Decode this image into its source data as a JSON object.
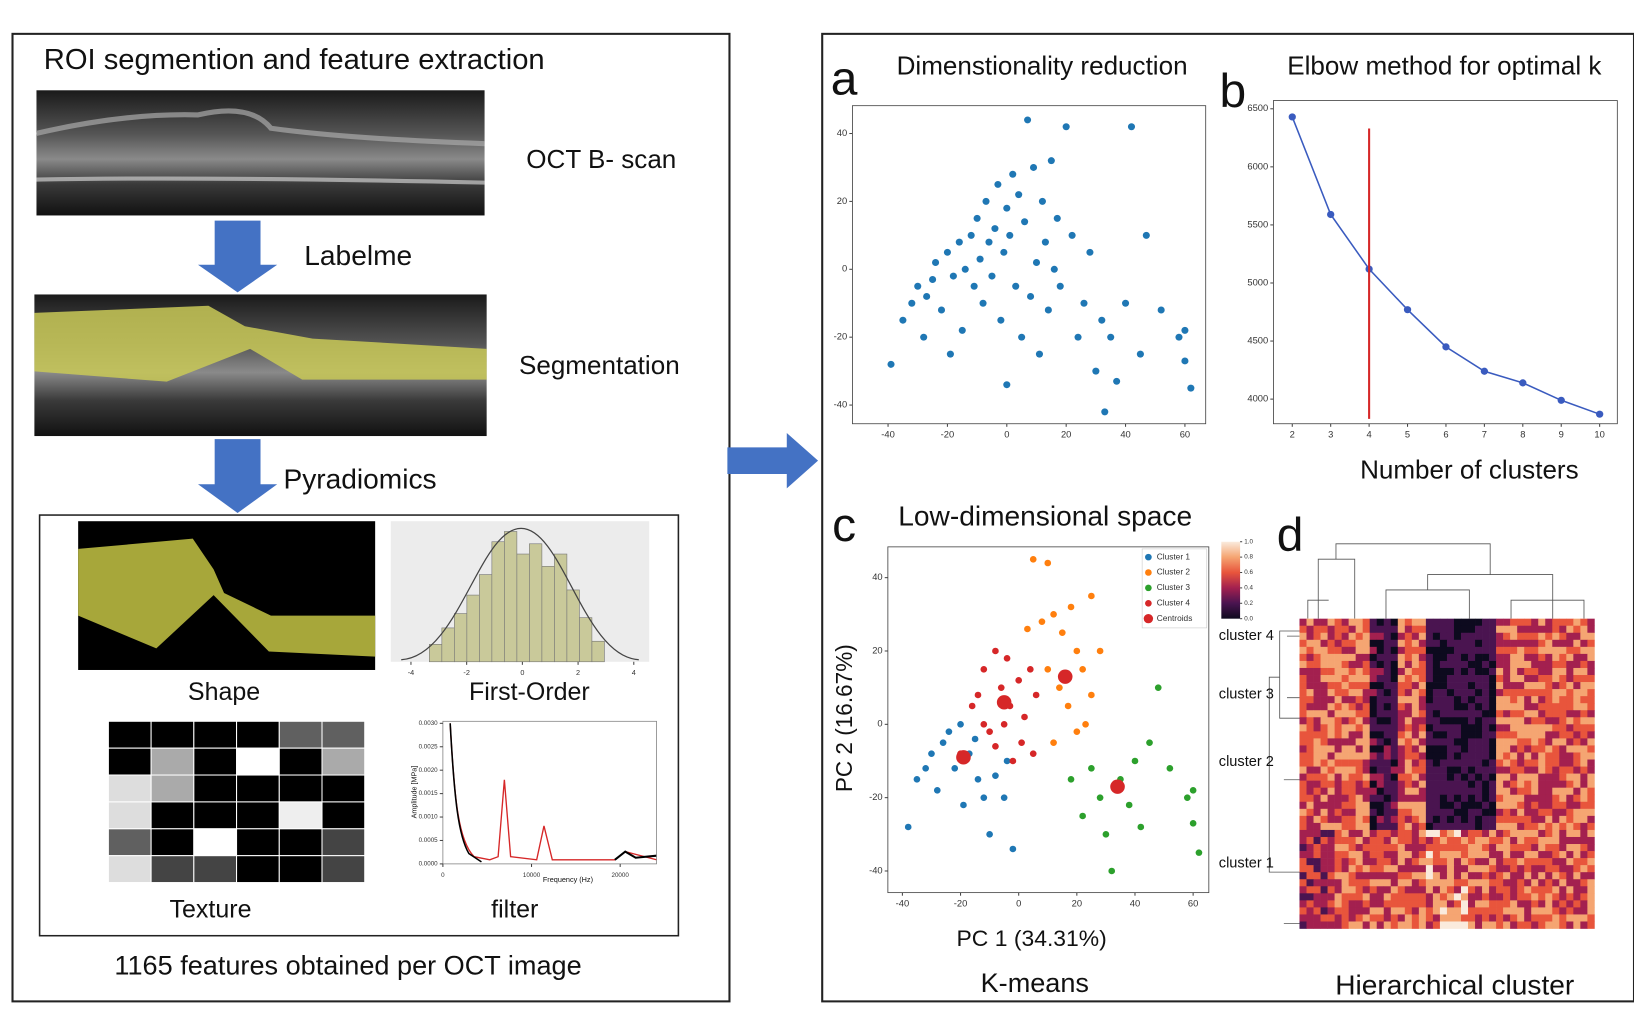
{
  "left_panel": {
    "title": "ROI segmention and feature extraction",
    "oct_label": "OCT B- scan",
    "step_1": "Labelme",
    "segmentation_label": "Segmentation",
    "step_2": "Pyradiomics",
    "shape": "Shape",
    "first_order": {
      "label": "First-Order",
      "xlim": [
        -4.35,
        4.18
      ],
      "xticks": [
        -4,
        -2,
        0,
        2,
        4
      ]
    },
    "texture": "Texture",
    "filter": {
      "label": "filter",
      "x_label": "Frequency (Hz)",
      "y_label": "Amplitude [MPa]",
      "xlim": [
        0,
        24100
      ],
      "xticks": [
        0,
        10000,
        20000
      ],
      "ylim": [
        0,
        0.003
      ],
      "yticks": [
        {
          "value": 0,
          "label": "0.0000"
        },
        {
          "value": 0.0005,
          "label": "0.0005"
        },
        {
          "value": 0.001,
          "label": "0.0010"
        },
        {
          "value": 0.0015,
          "label": "0.0015"
        },
        {
          "value": 0.002,
          "label": "0.0020"
        },
        {
          "value": 0.0025,
          "label": "0.0025"
        },
        {
          "value": 0.003,
          "label": "0.0030"
        }
      ]
    },
    "summary": "1165 features obtained per OCT image"
  },
  "chart_data": [
    {
      "type": "scatter",
      "letter": "a",
      "title": "Dimenstionality reduction",
      "color": "#1f77b4",
      "x": [
        -39,
        -35,
        -32,
        -30,
        -28,
        -27,
        -25,
        -24,
        -22,
        -20,
        -19,
        -18,
        -16,
        -15,
        -14,
        -12,
        -11,
        -10,
        -9,
        -8,
        -7,
        -6,
        -5,
        -4,
        -3,
        -2,
        -1,
        0,
        0,
        1,
        2,
        3,
        4,
        5,
        6,
        7,
        8,
        9,
        10,
        11,
        12,
        13,
        14,
        15,
        16,
        17,
        18,
        20,
        22,
        24,
        26,
        28,
        30,
        32,
        33,
        35,
        37,
        40,
        42,
        45,
        47,
        52,
        58,
        60,
        62,
        60
      ],
      "y": [
        -28,
        -15,
        -10,
        -5,
        -20,
        -8,
        -3,
        2,
        -12,
        5,
        -25,
        -2,
        8,
        -18,
        0,
        10,
        -5,
        15,
        3,
        -10,
        20,
        8,
        -2,
        12,
        25,
        -15,
        5,
        18,
        -34,
        10,
        28,
        -5,
        22,
        -20,
        14,
        44,
        -8,
        30,
        2,
        -25,
        20,
        8,
        -12,
        32,
        0,
        15,
        -5,
        42,
        10,
        -20,
        -10,
        5,
        -30,
        -15,
        -42,
        -20,
        -33,
        -10,
        42,
        -25,
        10,
        -12,
        -20,
        -27,
        -35,
        -18
      ],
      "xlim": [
        -52,
        67
      ],
      "ylim": [
        -45.5,
        48.2
      ],
      "xticks": [
        -40,
        -20,
        0,
        20,
        40,
        60
      ],
      "yticks": [
        -40,
        -20,
        0,
        20,
        40
      ]
    },
    {
      "type": "line",
      "letter": "b",
      "title": "Elbow method for optimal k",
      "x_label": "Number of clusters",
      "color": "#3a5bbf",
      "x": [
        2,
        3,
        4,
        5,
        6,
        7,
        8,
        9,
        10
      ],
      "values": [
        6430,
        5590,
        5120,
        4770,
        4450,
        4240,
        4140,
        3990,
        3870
      ],
      "vline": {
        "x": 4,
        "y": [
          3830,
          6330
        ],
        "color": "#d62728"
      },
      "xlim": [
        1.51,
        10.46
      ],
      "ylim": [
        3788,
        6571
      ],
      "xticks": [
        2,
        3,
        4,
        5,
        6,
        7,
        8,
        9,
        10
      ],
      "yticks": [
        4000,
        4500,
        5000,
        5500,
        6000,
        6500
      ]
    },
    {
      "type": "scatter",
      "letter": "c",
      "title": "Low-dimensional space",
      "x_label": "PC 1 (34.31%)",
      "y_label": "PC 2 (16.67%)",
      "caption": "K-means",
      "legend": "upper right",
      "series": [
        {
          "name": "Cluster 1",
          "color": "#1f77b4",
          "marker_size": 3.2,
          "x": [
            -38,
            -35,
            -32,
            -30,
            -28,
            -26,
            -24,
            -22,
            -20,
            -19,
            -17,
            -15,
            -14,
            -12,
            -10,
            -8,
            -5,
            -2,
            -4
          ],
          "y": [
            -28,
            -15,
            -12,
            -8,
            -18,
            -5,
            -2,
            -12,
            0,
            -22,
            -8,
            -4,
            -15,
            -20,
            -30,
            -14,
            -20,
            -34,
            -10
          ]
        },
        {
          "name": "Cluster 2",
          "color": "#ff7f0e",
          "marker_size": 3.2,
          "x": [
            5,
            10,
            3,
            8,
            12,
            15,
            18,
            20,
            22,
            25,
            14,
            17,
            20,
            23,
            25,
            28,
            12,
            10
          ],
          "y": [
            45,
            44,
            26,
            28,
            30,
            25,
            32,
            20,
            15,
            35,
            10,
            5,
            -2,
            0,
            8,
            20,
            -5,
            15
          ]
        },
        {
          "name": "Cluster 3",
          "color": "#2ca02c",
          "marker_size": 3.2,
          "x": [
            18,
            22,
            25,
            28,
            30,
            32,
            35,
            38,
            40,
            42,
            45,
            48,
            52,
            58,
            60,
            62,
            60
          ],
          "y": [
            -15,
            -25,
            -12,
            -20,
            -30,
            -40,
            -15,
            -22,
            -10,
            -28,
            -5,
            10,
            -12,
            -20,
            -27,
            -35,
            -18
          ]
        },
        {
          "name": "Cluster 4",
          "color": "#d62728",
          "marker_size": 3.2,
          "x": [
            -20,
            -16,
            -14,
            -12,
            -10,
            -8,
            -6,
            -5,
            -3,
            -2,
            0,
            1,
            2,
            4,
            5,
            6,
            -8,
            -12,
            -4
          ],
          "y": [
            -8,
            5,
            8,
            15,
            -2,
            20,
            10,
            0,
            5,
            -10,
            12,
            -5,
            2,
            15,
            -8,
            8,
            -6,
            0,
            18
          ]
        },
        {
          "name": "Centroids",
          "color": "#d62728",
          "marker_size": 7,
          "x": [
            -19,
            16,
            -5,
            34
          ],
          "y": [
            -9,
            13,
            6,
            -17
          ]
        }
      ],
      "xlim": [
        -45,
        65.4
      ],
      "ylim": [
        -45.9,
        48.4
      ],
      "xticks": [
        -40,
        -20,
        0,
        20,
        40,
        60
      ],
      "yticks": [
        -40,
        -20,
        0,
        20,
        40
      ]
    }
  ],
  "panel_d": {
    "letter": "d",
    "caption": "Hierarchical cluster",
    "cluster_labels": [
      "cluster 4",
      "cluster 3",
      "cluster 2",
      "cluster 1"
    ],
    "colorbar": {
      "lim": [
        0,
        1
      ],
      "colors": [
        "#0d0a1e",
        "#4a1450",
        "#a3204f",
        "#e8553c",
        "#f5a572",
        "#faebdd"
      ],
      "ticks": [
        {
          "value": 0,
          "label": "0.0"
        },
        {
          "value": 0.2,
          "label": "0.2"
        },
        {
          "value": 0.4,
          "label": "0.4"
        },
        {
          "value": 0.6,
          "label": "0.6"
        },
        {
          "value": 0.8,
          "label": "0.8"
        },
        {
          "value": 1,
          "label": "1.0"
        }
      ]
    }
  }
}
